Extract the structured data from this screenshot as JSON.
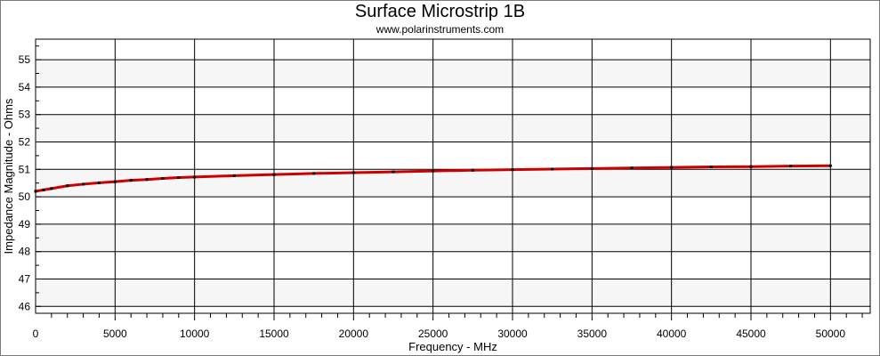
{
  "chart_data": {
    "type": "line",
    "title": "Surface Microstrip 1B",
    "subtitle": "www.polarinstruments.com",
    "xlabel": "Frequency - MHz",
    "ylabel": "Impedance Magnitude - Ohms",
    "xlim": [
      0,
      52500
    ],
    "ylim": [
      45.75,
      55.75
    ],
    "x_ticks": [
      0,
      5000,
      10000,
      15000,
      20000,
      25000,
      30000,
      35000,
      40000,
      45000,
      50000
    ],
    "y_ticks": [
      46,
      47,
      48,
      49,
      50,
      51,
      52,
      53,
      54,
      55
    ],
    "grid": true,
    "legend": "none",
    "series": [
      {
        "color": "#cc0000",
        "x": [
          0,
          500,
          1000,
          2000,
          3000,
          4000,
          5000,
          6000,
          7000,
          8000,
          9000,
          10000,
          12500,
          15000,
          17500,
          20000,
          22500,
          25000,
          27500,
          30000,
          32500,
          35000,
          37500,
          40000,
          42500,
          45000,
          47500,
          50000
        ],
        "y": [
          50.2,
          50.25,
          50.3,
          50.4,
          50.46,
          50.51,
          50.55,
          50.6,
          50.63,
          50.67,
          50.7,
          50.72,
          50.77,
          50.81,
          50.85,
          50.88,
          50.91,
          50.94,
          50.97,
          50.99,
          51.01,
          51.03,
          51.05,
          51.07,
          51.09,
          51.1,
          51.12,
          51.13
        ]
      }
    ]
  }
}
